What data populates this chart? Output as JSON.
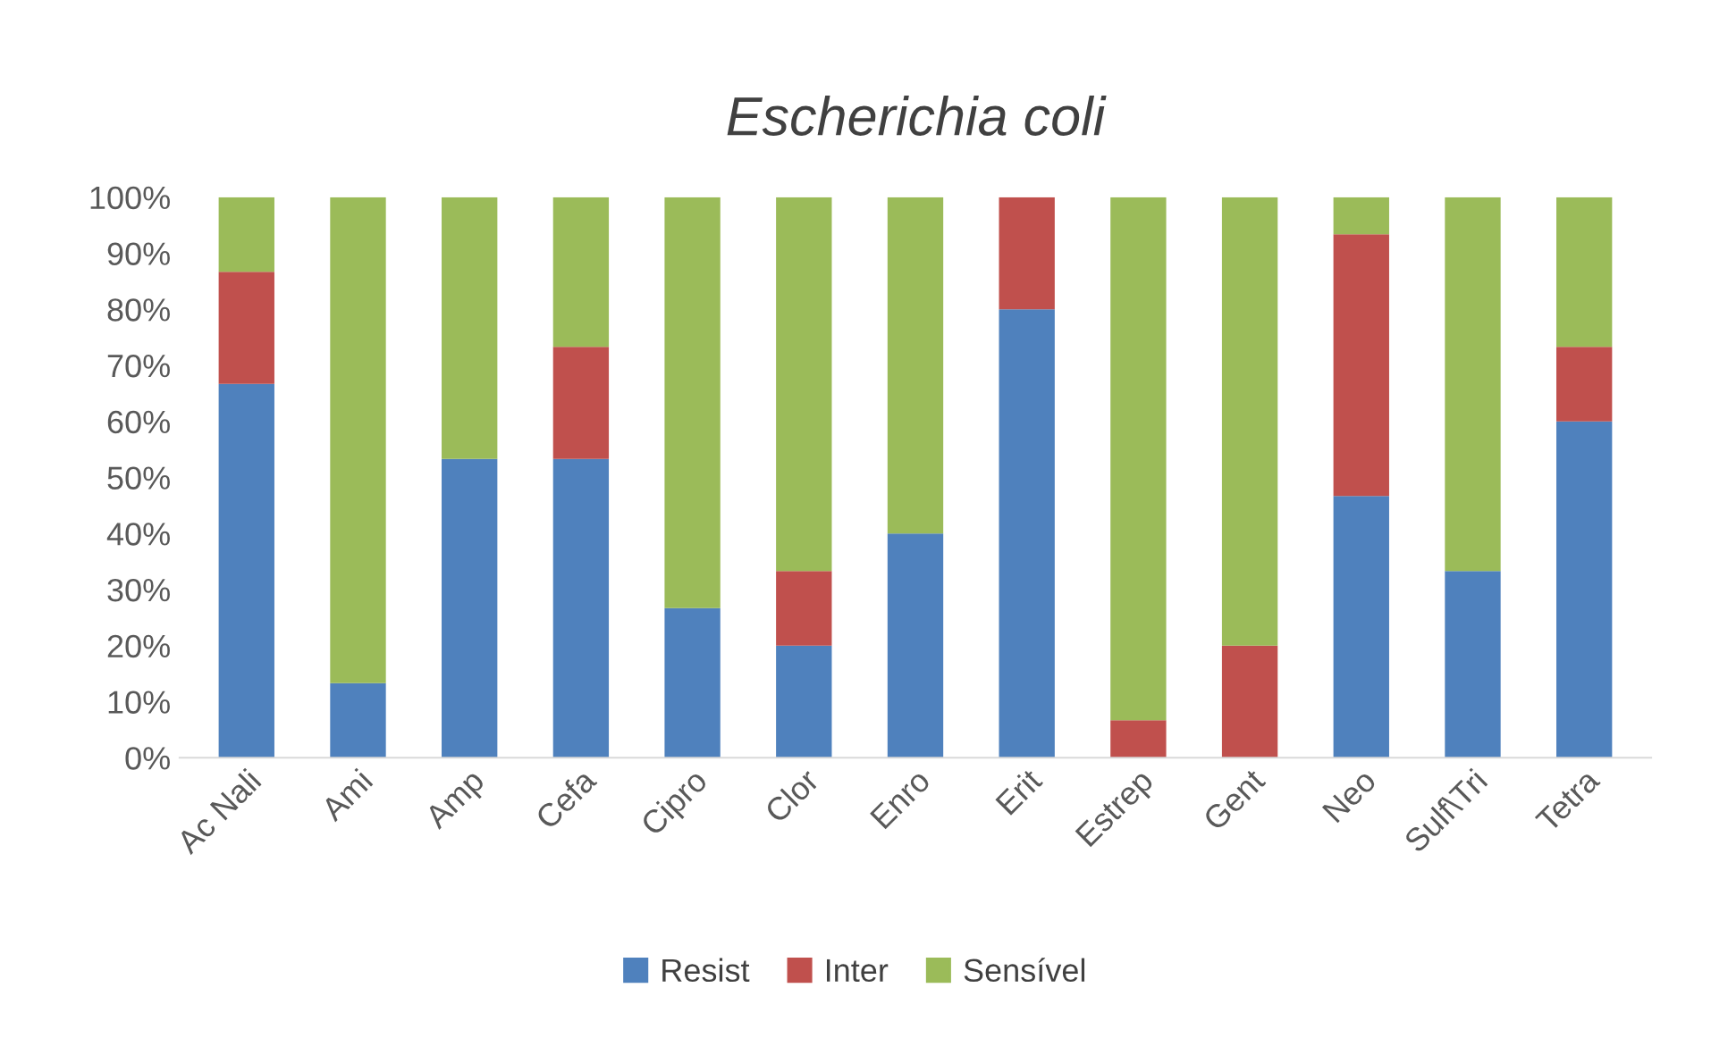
{
  "chart_data": {
    "type": "bar",
    "title": "Escherichia coli",
    "stacked": true,
    "legend": "bottom",
    "grid": false,
    "categories": [
      "Ac Nali",
      "Ami",
      "Amp",
      "Cefa",
      "Cipro",
      "Clor",
      "Enro",
      "Erit",
      "Estrep",
      "Gent",
      "Neo",
      "Sulf\\Tri",
      "Tetra"
    ],
    "series": [
      {
        "name": "Resist",
        "color": "#4f81bd",
        "values": [
          66.7,
          13.3,
          53.3,
          53.3,
          26.7,
          20,
          40,
          80,
          0,
          0,
          46.7,
          33.3,
          60
        ]
      },
      {
        "name": "Inter",
        "color": "#c0504d",
        "values": [
          20,
          0,
          0,
          20,
          0,
          13.3,
          0,
          20,
          6.7,
          20,
          46.7,
          0,
          13.3
        ]
      },
      {
        "name": "Sensível",
        "color": "#9bbb59",
        "values": [
          13.3,
          86.7,
          46.7,
          26.7,
          73.3,
          66.7,
          60,
          0,
          93.3,
          80,
          6.6,
          66.7,
          26.7
        ]
      }
    ],
    "ylim": [
      0,
      100
    ],
    "yticks": [
      {
        "value": 0,
        "label": "0%"
      },
      {
        "value": 10,
        "label": "10%"
      },
      {
        "value": 20,
        "label": "20%"
      },
      {
        "value": 30,
        "label": "30%"
      },
      {
        "value": 40,
        "label": "40%"
      },
      {
        "value": 50,
        "label": "50%"
      },
      {
        "value": 60,
        "label": "60%"
      },
      {
        "value": 70,
        "label": "70%"
      },
      {
        "value": 80,
        "label": "80%"
      },
      {
        "value": 90,
        "label": "90%"
      },
      {
        "value": 100,
        "label": "100%"
      }
    ]
  }
}
